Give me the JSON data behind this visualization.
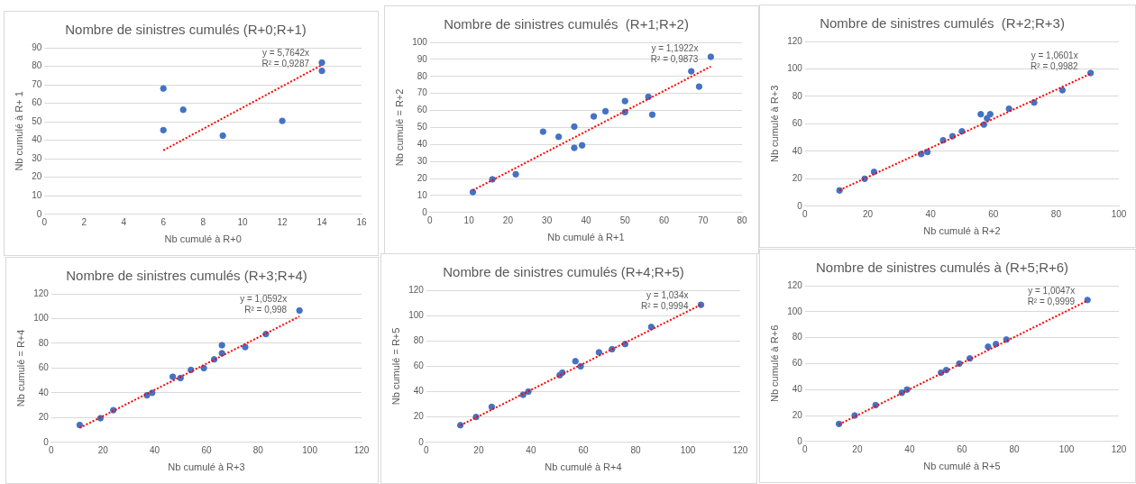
{
  "chart_data": [
    {
      "type": "scatter",
      "title": "Nombre de sinistres cumulés (R+0;R+1)",
      "xlabel": "Nb cumulé à R+0",
      "ylabel": "Nb cumulé à R+ 1",
      "xlim": [
        0,
        16
      ],
      "xticks": [
        0,
        2,
        4,
        6,
        8,
        10,
        12,
        14,
        16
      ],
      "ylim": [
        0,
        90
      ],
      "yticks": [
        0,
        10,
        20,
        30,
        40,
        50,
        60,
        70,
        80,
        90
      ],
      "grid": "y",
      "legend": false,
      "series": [
        {
          "type": "scatter",
          "color": "#4472c4",
          "marker": "circle",
          "x": [
            6,
            6,
            7,
            9,
            12,
            14,
            14
          ],
          "values": [
            68,
            45.5,
            56.5,
            42.5,
            50.5,
            82,
            77.5
          ]
        },
        {
          "type": "line",
          "color": "#ff0000",
          "line_style": "dotted",
          "x": [
            6,
            14
          ],
          "values": [
            34.6,
            80.7
          ]
        }
      ],
      "annotations": [
        "y = 5,7642x",
        "R² = 0,9287"
      ]
    },
    {
      "type": "scatter",
      "title": "Nombre de sinistres cumulés  (R+1;R+2)",
      "xlabel": "Nb cumulé à R+1",
      "ylabel": "Nb cumulé = R+2",
      "xlim": [
        0,
        80
      ],
      "xticks": [
        0,
        10,
        20,
        30,
        40,
        50,
        60,
        70,
        80
      ],
      "ylim": [
        0,
        100
      ],
      "yticks": [
        0,
        10,
        20,
        30,
        40,
        50,
        60,
        70,
        80,
        90,
        100
      ],
      "grid": "y",
      "legend": false,
      "series": [
        {
          "type": "scatter",
          "color": "#4472c4",
          "marker": "circle",
          "x": [
            11,
            16,
            22,
            29,
            33,
            37,
            37,
            39,
            42,
            45,
            50,
            50,
            56,
            57,
            67,
            69,
            72
          ],
          "values": [
            12,
            19.5,
            22.5,
            47.5,
            44.5,
            50.5,
            38,
            39.5,
            56.5,
            59.5,
            65.5,
            59,
            68,
            57.5,
            83,
            74,
            91.5
          ]
        },
        {
          "type": "line",
          "color": "#ff0000",
          "line_style": "dotted",
          "x": [
            11,
            72
          ],
          "values": [
            13.1,
            85.8
          ]
        }
      ],
      "annotations": [
        "y = 1,1922x",
        "R² = 0,9873"
      ]
    },
    {
      "type": "scatter",
      "title": "Nombre de sinistres cumulés  (R+2;R+3)",
      "xlabel": "Nb cumulé à R+2",
      "ylabel": "Nb cumulé à R+3",
      "xlim": [
        0,
        100
      ],
      "xticks": [
        0,
        20,
        40,
        60,
        80,
        100
      ],
      "ylim": [
        0,
        120
      ],
      "yticks": [
        0,
        20,
        40,
        60,
        80,
        100,
        120
      ],
      "grid": "y",
      "legend": false,
      "series": [
        {
          "type": "scatter",
          "color": "#4472c4",
          "marker": "circle",
          "x": [
            11,
            19,
            22,
            37,
            39,
            44,
            47,
            50,
            56,
            57,
            58,
            59,
            65,
            73,
            82,
            91
          ],
          "values": [
            11.5,
            20,
            25,
            38,
            39.5,
            48,
            51,
            54.5,
            67,
            59.5,
            64,
            67,
            71,
            75.5,
            84.5,
            97
          ]
        },
        {
          "type": "line",
          "color": "#ff0000",
          "line_style": "dotted",
          "x": [
            11,
            91
          ],
          "values": [
            11.7,
            96.5
          ]
        }
      ],
      "annotations": [
        "y = 1,0601x",
        "R² = 0,9982"
      ]
    },
    {
      "type": "scatter",
      "title": "Nombre de sinistres cumulés (R+3;R+4)",
      "xlabel": "Nb cumulé à R+3",
      "ylabel": "Nb cumulé = R+4",
      "xlim": [
        0,
        120
      ],
      "xticks": [
        0,
        20,
        40,
        60,
        80,
        100,
        120
      ],
      "ylim": [
        0,
        120
      ],
      "yticks": [
        0,
        20,
        40,
        60,
        80,
        100,
        120
      ],
      "grid": "y",
      "legend": false,
      "series": [
        {
          "type": "scatter",
          "color": "#4472c4",
          "marker": "circle",
          "x": [
            11,
            19,
            24,
            37,
            39,
            47,
            50,
            54,
            59,
            63,
            66,
            66,
            75,
            83,
            96
          ],
          "values": [
            14,
            19.5,
            26,
            38,
            40,
            53,
            52,
            58.5,
            60,
            67,
            78.5,
            72,
            77,
            87.5,
            106.5
          ]
        },
        {
          "type": "line",
          "color": "#ff0000",
          "line_style": "dotted",
          "x": [
            11,
            96
          ],
          "values": [
            11.7,
            101.7
          ]
        }
      ],
      "annotations": [
        "y = 1,0592x",
        "R² = 0,998"
      ]
    },
    {
      "type": "scatter",
      "title": "Nombre de sinistres cumulés (R+4;R+5)",
      "xlabel": "Nb cumulé à R+4",
      "ylabel": "Nb cumulé = R+5",
      "xlim": [
        0,
        120
      ],
      "xticks": [
        0,
        20,
        40,
        60,
        80,
        100,
        120
      ],
      "ylim": [
        0,
        120
      ],
      "yticks": [
        0,
        20,
        40,
        60,
        80,
        100,
        120
      ],
      "grid": "y",
      "legend": false,
      "series": [
        {
          "type": "scatter",
          "color": "#4472c4",
          "marker": "circle",
          "x": [
            13,
            19,
            25,
            37,
            39,
            51,
            52,
            57,
            59,
            66,
            71,
            76,
            86,
            105
          ],
          "values": [
            13.5,
            20,
            28,
            37.5,
            40,
            53,
            55,
            64,
            60,
            71,
            73.5,
            77.5,
            91,
            108.5
          ]
        },
        {
          "type": "line",
          "color": "#ff0000",
          "line_style": "dotted",
          "x": [
            13,
            105
          ],
          "values": [
            13.4,
            108.6
          ]
        }
      ],
      "annotations": [
        "y = 1,034x",
        "R² = 0,9994"
      ]
    },
    {
      "type": "scatter",
      "title": "Nombre de sinistres cumulés à (R+5;R+6)",
      "xlabel": "Nb cumulé à R+5",
      "ylabel": "Nb cumulé à R+6",
      "xlim": [
        0,
        120
      ],
      "xticks": [
        0,
        20,
        40,
        60,
        80,
        100,
        120
      ],
      "ylim": [
        0,
        120
      ],
      "yticks": [
        0,
        20,
        40,
        60,
        80,
        100,
        120
      ],
      "grid": "y",
      "legend": false,
      "series": [
        {
          "type": "scatter",
          "color": "#4472c4",
          "marker": "circle",
          "x": [
            13,
            19,
            27,
            37,
            39,
            52,
            54,
            59,
            63,
            70,
            73,
            77,
            108
          ],
          "values": [
            13.5,
            20,
            28,
            37.5,
            40,
            53,
            55,
            60,
            64,
            73,
            75,
            78.5,
            109
          ]
        },
        {
          "type": "line",
          "color": "#ff0000",
          "line_style": "dotted",
          "x": [
            13,
            108
          ],
          "values": [
            13.1,
            108.5
          ]
        }
      ],
      "annotations": [
        "y = 1,0047x",
        "R² = 0,9999"
      ]
    }
  ]
}
